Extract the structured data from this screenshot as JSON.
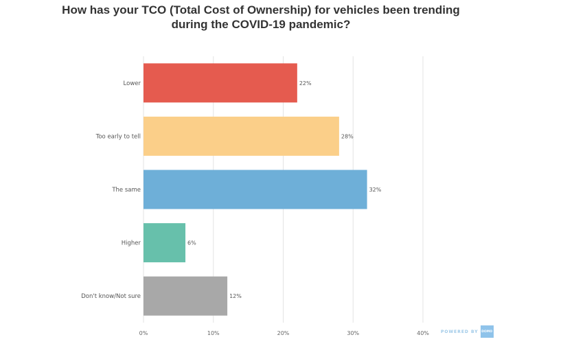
{
  "chart_data": {
    "type": "bar",
    "orientation": "horizontal",
    "title_lines": [
      "How has your TCO (Total Cost of Ownership) for vehicles been trending",
      "during the COVID-19 pandemic?"
    ],
    "categories": [
      "Lower",
      "Too early to tell",
      "The same",
      "Higher",
      "Don't know/Not sure"
    ],
    "values": [
      22,
      28,
      32,
      6,
      12
    ],
    "value_labels": [
      "22%",
      "28%",
      "32%",
      "6%",
      "12%"
    ],
    "colors": [
      "#e55b4f",
      "#fbcf89",
      "#6eafd8",
      "#67c0ab",
      "#a8a8a8"
    ],
    "xlim": [
      0,
      40
    ],
    "x_ticks": [
      0,
      10,
      20,
      30,
      40
    ],
    "x_tick_labels": [
      "0%",
      "10%",
      "20%",
      "30%",
      "40%"
    ],
    "grid": true,
    "legend": "none"
  },
  "footer": {
    "powered_by": "POWERED BY",
    "logo_text": "DOMO"
  }
}
